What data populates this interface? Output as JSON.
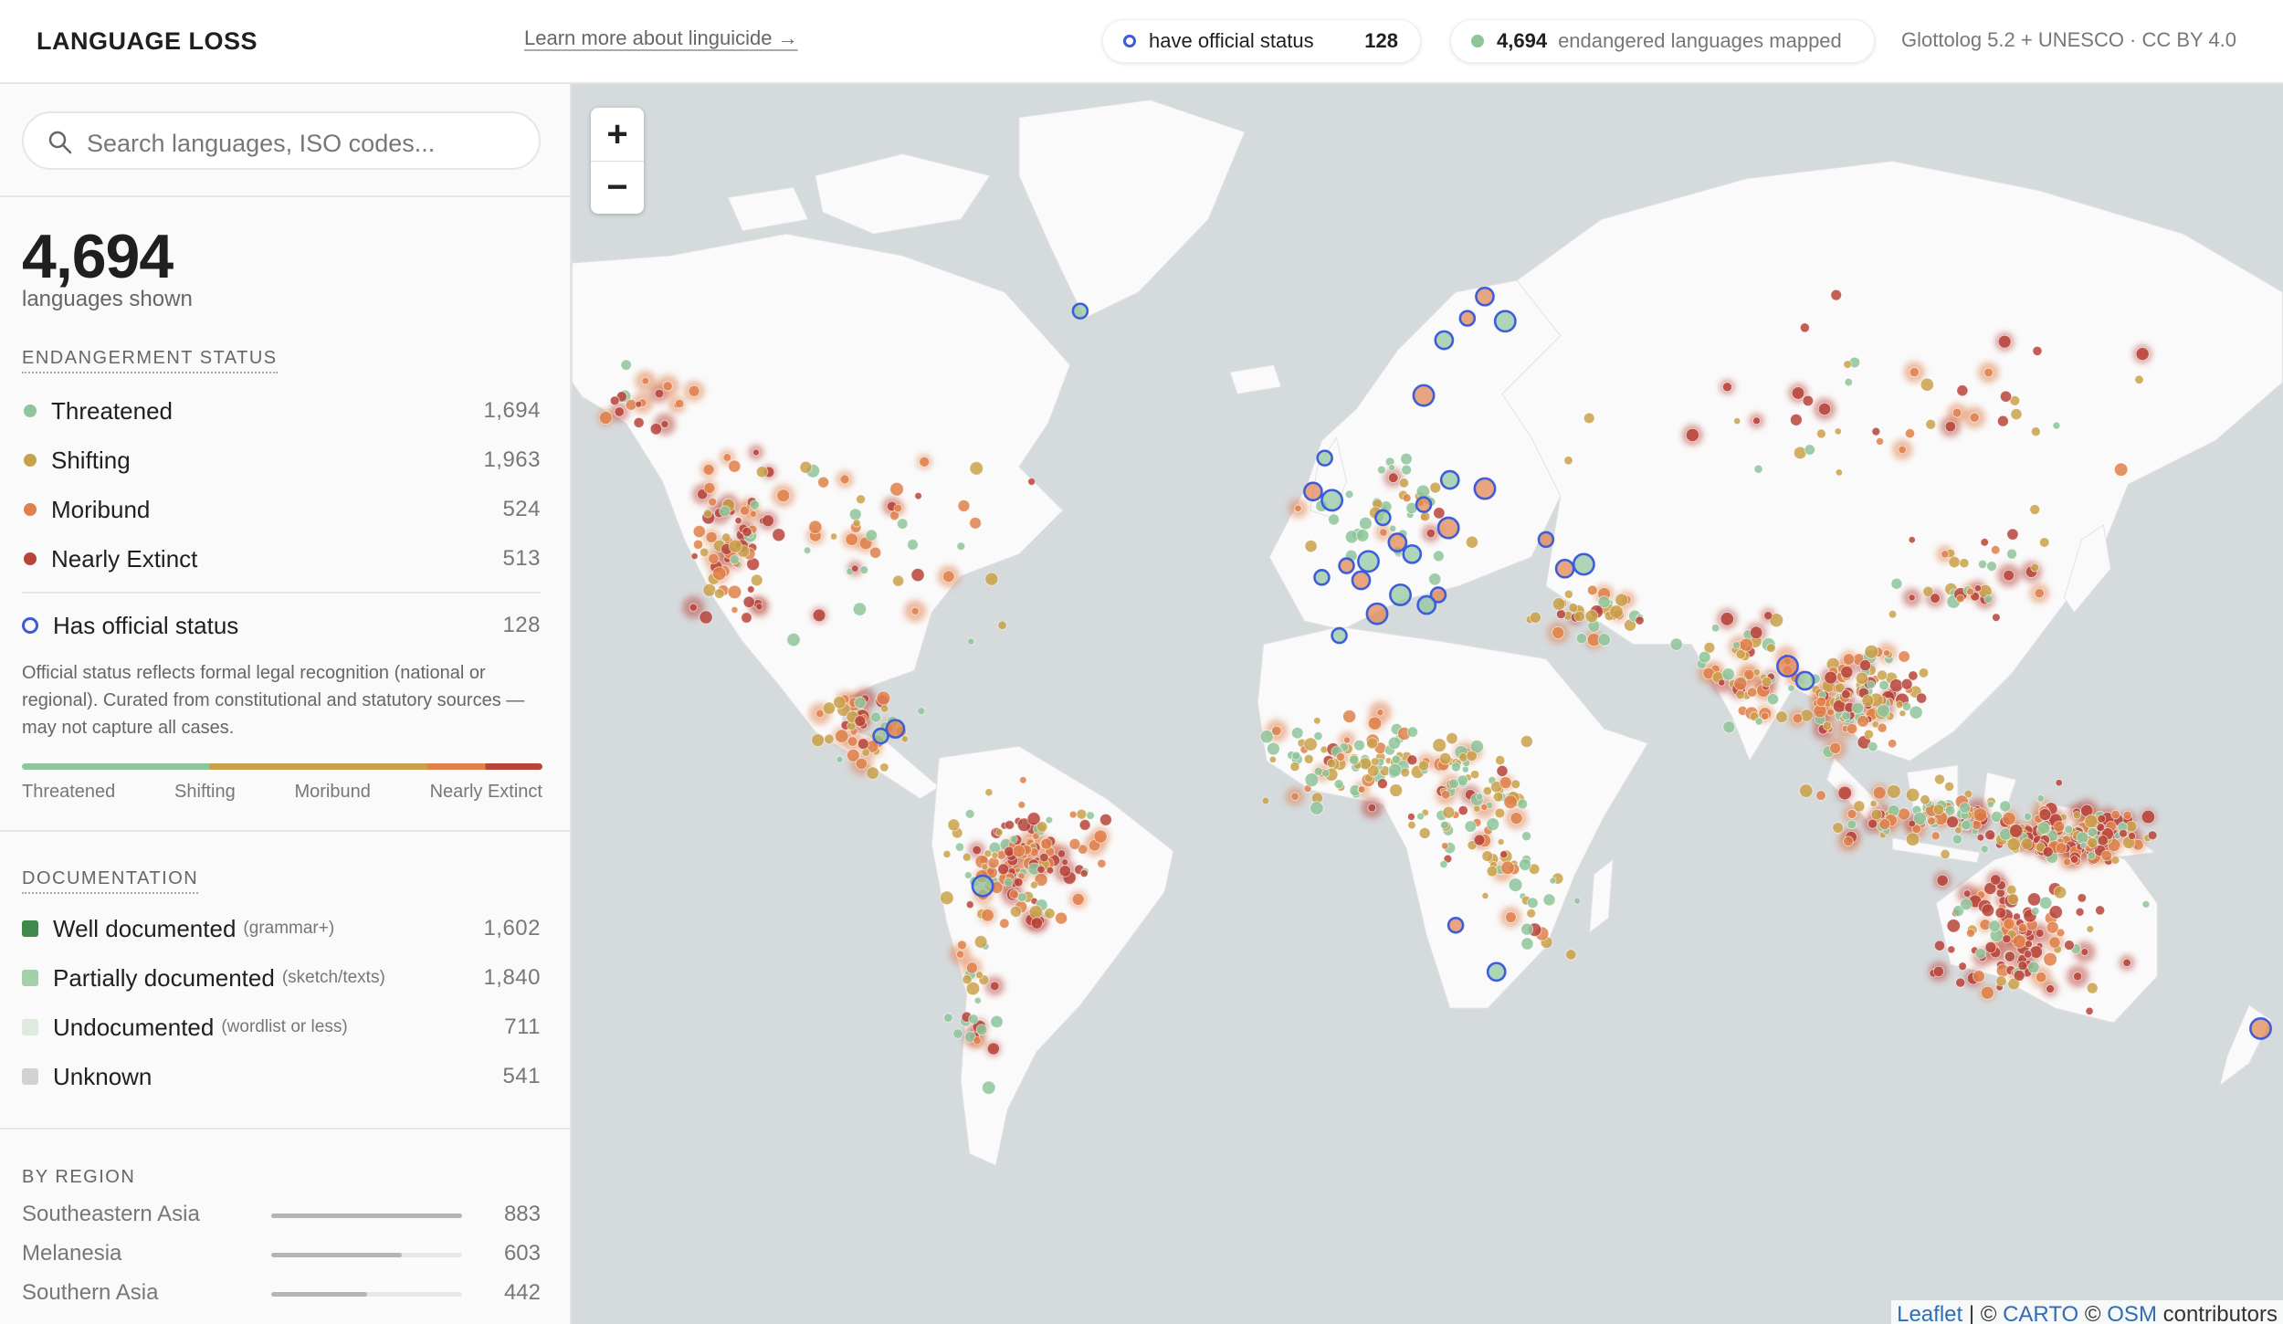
{
  "header": {
    "title": "LANGUAGE LOSS",
    "link": "Learn more about linguicide →",
    "official_pill": {
      "label": "have official status",
      "count": "128"
    },
    "mapped_pill": {
      "count": "4,694",
      "label": "endangered languages mapped"
    },
    "source": "Glottolog 5.2 + UNESCO · CC BY 4.0"
  },
  "sidebar": {
    "search_placeholder": "Search languages, ISO codes...",
    "total": "4,694",
    "total_label": "languages shown",
    "endangerment": {
      "heading": "ENDANGERMENT STATUS",
      "items": [
        {
          "label": "Threatened",
          "count": "1,694"
        },
        {
          "label": "Shifting",
          "count": "1,963"
        },
        {
          "label": "Moribund",
          "count": "524"
        },
        {
          "label": "Nearly Extinct",
          "count": "513"
        }
      ],
      "official": {
        "label": "Has official status",
        "count": "128"
      },
      "note": "Official status reflects formal legal recognition (national or regional). Curated from constitutional and statutory sources — may not capture all cases.",
      "scale": [
        "Threatened",
        "Shifting",
        "Moribund",
        "Nearly Extinct"
      ]
    },
    "documentation": {
      "heading": "DOCUMENTATION",
      "items": [
        {
          "label": "Well documented",
          "detail": "(grammar+)",
          "count": "1,602"
        },
        {
          "label": "Partially documented",
          "detail": "(sketch/texts)",
          "count": "1,840"
        },
        {
          "label": "Undocumented",
          "detail": "(wordlist or less)",
          "count": "711"
        },
        {
          "label": "Unknown",
          "count": "541"
        }
      ]
    },
    "regions": {
      "heading": "BY REGION",
      "items": [
        {
          "label": "Southeastern Asia",
          "count": 883
        },
        {
          "label": "Melanesia",
          "count": 603
        },
        {
          "label": "Southern Asia",
          "count": 442
        }
      ]
    }
  },
  "map": {
    "zoom_in": "+",
    "zoom_out": "−",
    "attribution": [
      {
        "text": "Leaflet",
        "link": true
      },
      {
        "text": " | © "
      },
      {
        "text": "CARTO",
        "link": true
      },
      {
        "text": " © "
      },
      {
        "text": "OSM",
        "link": true
      },
      {
        "text": " contributors"
      }
    ]
  }
}
